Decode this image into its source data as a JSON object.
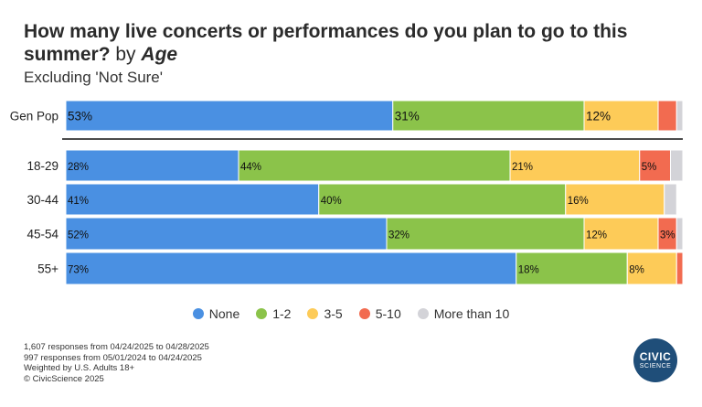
{
  "header": {
    "title_main": "How many live concerts or performances do you plan to go to this summer?",
    "title_by": "by",
    "title_dimension": "Age",
    "subtitle": "Excluding 'Not Sure'"
  },
  "chart_data": {
    "type": "bar",
    "orientation": "horizontal",
    "stacked": true,
    "normalized": true,
    "categories": [
      "Gen Pop",
      "18-29",
      "30-44",
      "45-54",
      "55+"
    ],
    "series": [
      {
        "name": "None",
        "color": "#4a90e2",
        "values": [
          53,
          28,
          41,
          52,
          73
        ]
      },
      {
        "name": "1-2",
        "color": "#8bc34a",
        "values": [
          31,
          44,
          40,
          32,
          18
        ]
      },
      {
        "name": "3-5",
        "color": "#fdcb58",
        "values": [
          12,
          21,
          16,
          12,
          8
        ]
      },
      {
        "name": "5-10",
        "color": "#f26b50",
        "values": [
          3,
          5,
          0,
          3,
          1
        ]
      },
      {
        "name": "More than 10",
        "color": "#d3d3d8",
        "values": [
          1,
          2,
          2,
          1,
          0
        ]
      }
    ],
    "labels_shown": [
      [
        "53%",
        "31%",
        "12%",
        "",
        ""
      ],
      [
        "28%",
        "44%",
        "21%",
        "5%",
        ""
      ],
      [
        "41%",
        "40%",
        "16%",
        "",
        ""
      ],
      [
        "52%",
        "32%",
        "12%",
        "3%",
        ""
      ],
      [
        "73%",
        "18%",
        "8%",
        "",
        ""
      ]
    ],
    "xlim": [
      0,
      100
    ],
    "legend_position": "bottom"
  },
  "footer": {
    "lines": [
      "1,607 responses from 04/24/2025 to 04/28/2025",
      "997 responses from 05/01/2024 to 04/24/2025",
      "Weighted by U.S. Adults 18+",
      "© CivicScience 2025"
    ]
  },
  "logo": {
    "line1": "CIVIC",
    "line2": "SCIENCE"
  }
}
